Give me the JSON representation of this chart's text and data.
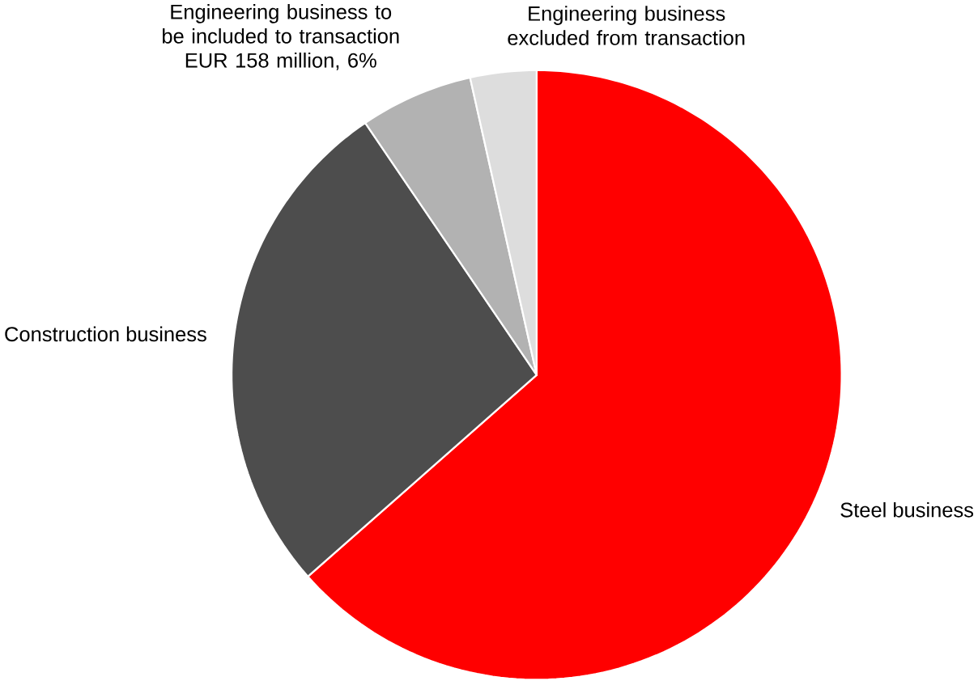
{
  "chart_data": {
    "type": "pie",
    "categories": [
      "Steel business",
      "Construction business",
      "Engineering business to be included to transaction EUR 158 million, 6%",
      "Engineering business excluded from transaction"
    ],
    "values": [
      63.5,
      27,
      6,
      3.5
    ],
    "colors": [
      "#ff0000",
      "#4d4d4d",
      "#b2b2b2",
      "#dddddd"
    ]
  }
}
